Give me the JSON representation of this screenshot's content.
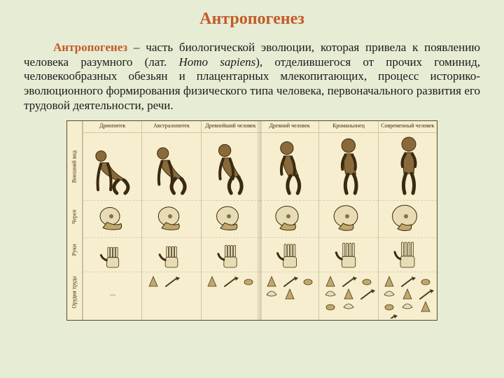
{
  "colors": {
    "background": "#e7ecd4",
    "title": "#c45a28",
    "term": "#c45a28",
    "text": "#1a1a1a",
    "chart_paper": "#f7eecf",
    "chart_border": "#5a4a2a",
    "figure_fill": "#8a6a3a",
    "figure_stroke": "#3a2a10",
    "skull_light": "#e8dcb4",
    "skull_shadow": "#c0a86a",
    "tool_stroke": "#4a3a1a"
  },
  "title": "Антропогенез",
  "paragraph": {
    "term": "Антропогенез",
    "rest": " – часть биологической эволюции, которая привела к появлению человека разумного (лат. ",
    "latin": "Homo sapiens",
    "rest2": "), отделившегося от прочих гоминид, человекообразных обезьян и плацентарных млекопитающих, процесс историко-эволюционного формирования физического типа человека, первоначального развития его трудовой деятельности, речи."
  },
  "chart": {
    "row_headers": [
      "Внешний вид",
      "Череп",
      "Руки",
      "Орудия труда"
    ],
    "stages": [
      {
        "id": "dryopithecus",
        "label": "Дриопитек",
        "upright": 0.15,
        "tool_count": 0,
        "skull_jaw": 1.0,
        "hand_len": 0.55
      },
      {
        "id": "australopithecus",
        "label": "Австралопитек",
        "upright": 0.35,
        "tool_count": 2,
        "skull_jaw": 0.88,
        "hand_len": 0.62
      },
      {
        "id": "earliest",
        "label": "Древнейший человек",
        "upright": 0.55,
        "tool_count": 3,
        "skull_jaw": 0.76,
        "hand_len": 0.72
      },
      {
        "id": "ancient",
        "label": "Древний человек",
        "upright": 0.72,
        "tool_count": 5,
        "skull_jaw": 0.64,
        "hand_len": 0.82
      },
      {
        "id": "cromagnon",
        "label": "Кроманьонец",
        "upright": 0.9,
        "tool_count": 8,
        "skull_jaw": 0.52,
        "hand_len": 0.92
      },
      {
        "id": "modern",
        "label": "Современный человек",
        "upright": 1.0,
        "tool_count": 10,
        "skull_jaw": 0.42,
        "hand_len": 1.0
      }
    ]
  }
}
